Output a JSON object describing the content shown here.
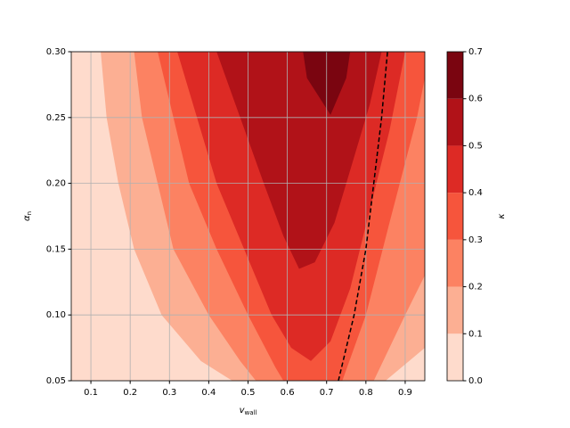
{
  "chart_data": {
    "type": "contour",
    "xlabel": {
      "text": "v",
      "subscript": "wall"
    },
    "ylabel": {
      "text": "α",
      "subscript": "n"
    },
    "colorbar_label": "κ",
    "xlim": [
      0.05,
      0.95
    ],
    "ylim": [
      0.05,
      0.3
    ],
    "xticks": [
      0.1,
      0.2,
      0.3,
      0.4,
      0.5,
      0.6,
      0.7,
      0.8,
      0.9
    ],
    "yticks": [
      0.05,
      {
        "value": 0.1,
        "label": "0.10"
      },
      0.15,
      {
        "value": 0.2,
        "label": "0.20"
      },
      0.25,
      {
        "value": 0.3,
        "label": "0.30"
      }
    ],
    "grid": true,
    "clim": [
      0,
      0.7
    ],
    "cticks": [
      {
        "value": 0,
        "label": "0.0"
      },
      0.1,
      0.2,
      0.3,
      0.4,
      0.5,
      0.6,
      0.7
    ],
    "colors": [
      "#fedbcc",
      "#fcaf93",
      "#fc8262",
      "#f6553c",
      "#dd2a25",
      "#b11218",
      "#7a0510"
    ],
    "contours": [
      {
        "x": [
          0.125,
          0.14,
          0.17,
          0.21,
          0.28,
          0.38,
          0.46,
          0.85,
          0.95,
          0.95
        ],
        "y": [
          0.3,
          0.25,
          0.2,
          0.15,
          0.1,
          0.065,
          0.05,
          0.05,
          0.075,
          0.3
        ]
      },
      {
        "x": [
          0.21,
          0.23,
          0.27,
          0.31,
          0.4,
          0.48,
          0.52,
          0.82,
          0.9,
          0.95,
          0.95
        ],
        "y": [
          0.3,
          0.25,
          0.2,
          0.15,
          0.1,
          0.065,
          0.05,
          0.05,
          0.1,
          0.13,
          0.3
        ]
      },
      {
        "x": [
          0.27,
          0.31,
          0.35,
          0.42,
          0.5,
          0.57,
          0.59,
          0.74,
          0.8,
          0.86,
          0.93,
          0.95,
          0.95
        ],
        "y": [
          0.3,
          0.25,
          0.2,
          0.15,
          0.1,
          0.06,
          0.05,
          0.05,
          0.1,
          0.17,
          0.25,
          0.28,
          0.3
        ]
      },
      {
        "x": [
          0.32,
          0.37,
          0.42,
          0.49,
          0.56,
          0.61,
          0.66,
          0.71,
          0.76,
          0.81,
          0.86,
          0.9
        ],
        "y": [
          0.3,
          0.25,
          0.2,
          0.15,
          0.1,
          0.075,
          0.065,
          0.08,
          0.12,
          0.18,
          0.24,
          0.3
        ]
      },
      {
        "x": [
          0.42,
          0.48,
          0.54,
          0.59,
          0.63,
          0.67,
          0.72,
          0.77,
          0.81,
          0.84
        ],
        "y": [
          0.3,
          0.25,
          0.2,
          0.16,
          0.135,
          0.14,
          0.17,
          0.22,
          0.26,
          0.3
        ]
      },
      {
        "x": [
          0.64,
          0.65,
          0.71,
          0.75,
          0.76
        ],
        "y": [
          0.3,
          0.28,
          0.252,
          0.28,
          0.3
        ]
      }
    ],
    "line": {
      "color": "#000000",
      "x": [
        0.73,
        0.77,
        0.8,
        0.82,
        0.84,
        0.855
      ],
      "y": [
        0.05,
        0.1,
        0.15,
        0.2,
        0.25,
        0.3
      ]
    }
  }
}
